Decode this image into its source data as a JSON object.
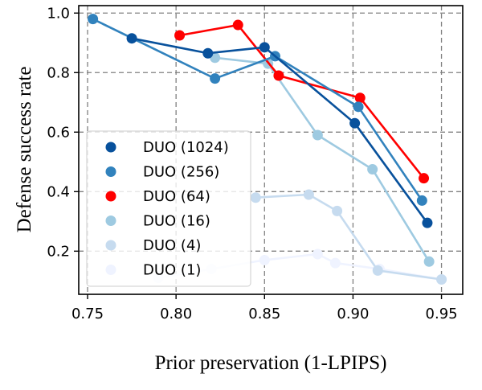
{
  "chart_data": {
    "type": "line",
    "title": "",
    "xlabel": "Prior preservation (1-LPIPS)",
    "ylabel": "Defense success rate",
    "xlim": [
      0.745,
      0.962
    ],
    "ylim": [
      0.055,
      1.025
    ],
    "xticks": [
      0.75,
      0.8,
      0.85,
      0.9,
      0.95
    ],
    "xtick_labels": [
      "0.75",
      "0.80",
      "0.85",
      "0.90",
      "0.95"
    ],
    "yticks": [
      0.2,
      0.4,
      0.6,
      0.8,
      1.0
    ],
    "ytick_labels": [
      "0.2",
      "0.4",
      "0.6",
      "0.8",
      "1.0"
    ],
    "grid": true,
    "legend_position": "lower-left",
    "series": [
      {
        "name": "DUO (1)",
        "color": "#eff3ff",
        "x": [
          0.79,
          0.82,
          0.85,
          0.88,
          0.89,
          0.915,
          0.95
        ],
        "y": [
          0.11,
          0.14,
          0.17,
          0.19,
          0.16,
          0.14,
          0.105
        ]
      },
      {
        "name": "DUO (4)",
        "color": "#c6dbef",
        "x": [
          0.845,
          0.875,
          0.891,
          0.914,
          0.95
        ],
        "y": [
          0.38,
          0.39,
          0.335,
          0.135,
          0.105
        ]
      },
      {
        "name": "DUO (16)",
        "color": "#9ecae1",
        "x": [
          0.822,
          0.852,
          0.88,
          0.911,
          0.943
        ],
        "y": [
          0.85,
          0.83,
          0.59,
          0.475,
          0.165
        ]
      },
      {
        "name": "DUO (64)",
        "color": "#ff0000",
        "x": [
          0.802,
          0.835,
          0.858,
          0.904,
          0.94
        ],
        "y": [
          0.925,
          0.96,
          0.79,
          0.715,
          0.445
        ]
      },
      {
        "name": "DUO (256)",
        "color": "#3182bd",
        "x": [
          0.753,
          0.822,
          0.856,
          0.903,
          0.939
        ],
        "y": [
          0.98,
          0.78,
          0.855,
          0.685,
          0.37
        ]
      },
      {
        "name": "DUO (1024)",
        "color": "#08519c",
        "x": [
          0.775,
          0.818,
          0.85,
          0.901,
          0.942
        ],
        "y": [
          0.915,
          0.865,
          0.885,
          0.63,
          0.295
        ]
      }
    ],
    "legend_order": [
      "DUO (1024)",
      "DUO (256)",
      "DUO (64)",
      "DUO (16)",
      "DUO (4)",
      "DUO (1)"
    ]
  }
}
